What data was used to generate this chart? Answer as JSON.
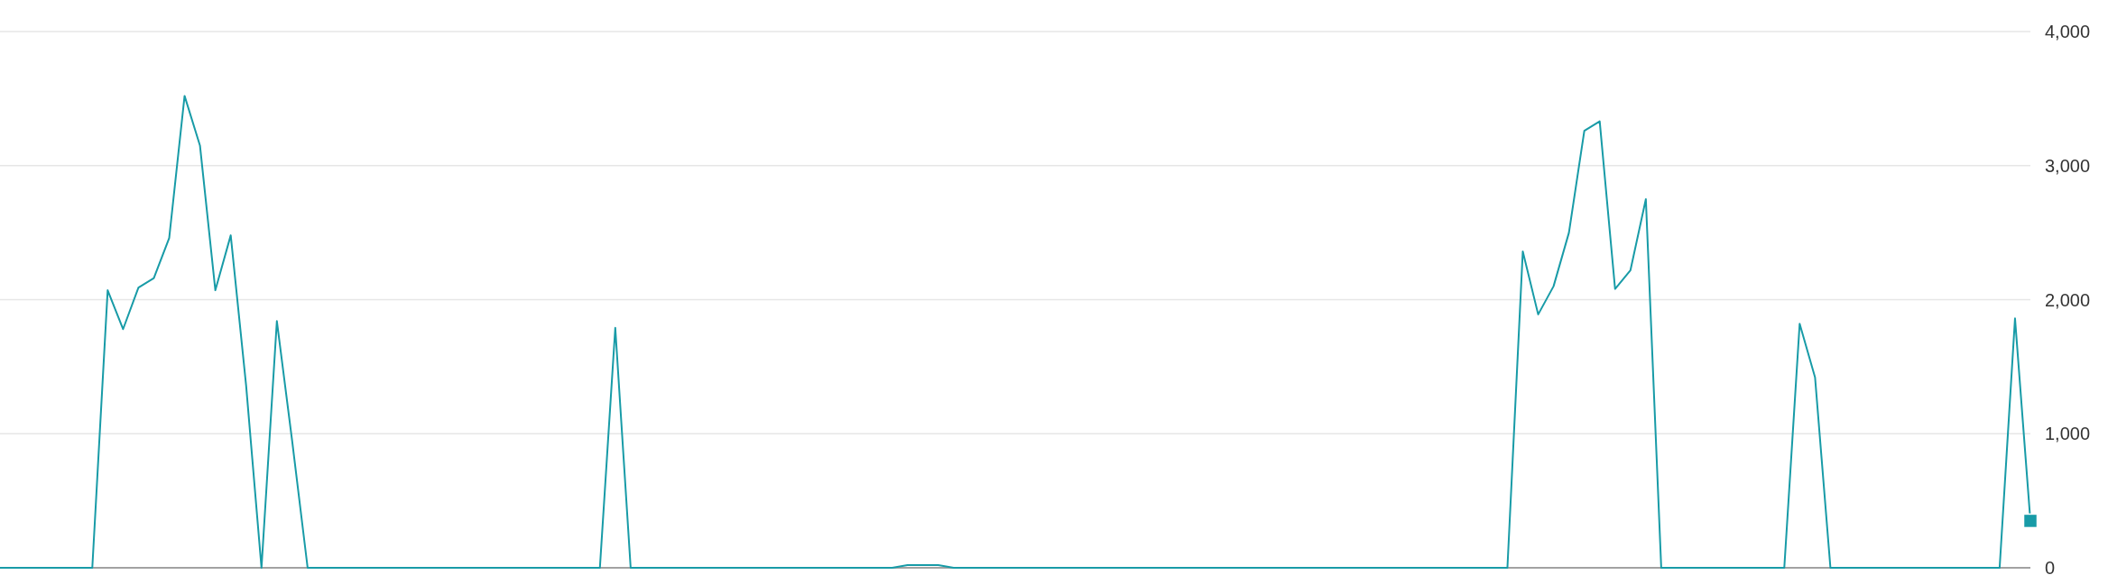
{
  "chart_data": {
    "type": "line",
    "categories": [
      null,
      null,
      null,
      null,
      null,
      null,
      null,
      null,
      null,
      null,
      null,
      null,
      null,
      null,
      null,
      null,
      null,
      null,
      null,
      null,
      null,
      null,
      null,
      null,
      null,
      null,
      null,
      null,
      null,
      null,
      null,
      null,
      null,
      null,
      null,
      null,
      null,
      null,
      null,
      null,
      null,
      null,
      null,
      null,
      null,
      null,
      null,
      null,
      null,
      null,
      null,
      null,
      null,
      null,
      null,
      null,
      null,
      null,
      null,
      null,
      null,
      null,
      null,
      null,
      null,
      null,
      null,
      null,
      null,
      null,
      null,
      null,
      null,
      null,
      null,
      null,
      null,
      null,
      null,
      null,
      null,
      null,
      null,
      null,
      null,
      null,
      null,
      null,
      null,
      null,
      null,
      null,
      null,
      null,
      null,
      null,
      null,
      null,
      null,
      null,
      null,
      null,
      null,
      null,
      null,
      null,
      null,
      null,
      null,
      null,
      null,
      null,
      null,
      null,
      null,
      null,
      null,
      null,
      null,
      null,
      null,
      null,
      null,
      null,
      null,
      null,
      null,
      null,
      null,
      null,
      null,
      null,
      null
    ],
    "series": [
      {
        "color": "#189ba7",
        "values": [
          0,
          0,
          0,
          0,
          0,
          0,
          0,
          2070,
          1780,
          2090,
          2160,
          2460,
          3520,
          3150,
          2070,
          2480,
          1360,
          0,
          1840,
          940,
          0,
          0,
          0,
          0,
          0,
          0,
          0,
          0,
          0,
          0,
          0,
          0,
          0,
          0,
          0,
          0,
          0,
          0,
          0,
          0,
          1790,
          0,
          0,
          0,
          0,
          0,
          0,
          0,
          0,
          0,
          0,
          0,
          0,
          0,
          0,
          0,
          0,
          0,
          0,
          20,
          20,
          20,
          0,
          0,
          0,
          0,
          0,
          0,
          0,
          0,
          0,
          0,
          0,
          0,
          0,
          0,
          0,
          0,
          0,
          0,
          0,
          0,
          0,
          0,
          0,
          0,
          0,
          0,
          0,
          0,
          0,
          0,
          0,
          0,
          0,
          0,
          0,
          0,
          0,
          2360,
          1890,
          2100,
          2500,
          3260,
          3330,
          2080,
          2220,
          2750,
          0,
          0,
          0,
          0,
          0,
          0,
          0,
          0,
          0,
          1820,
          1420,
          0,
          0,
          0,
          0,
          0,
          0,
          0,
          0,
          0,
          0,
          0,
          0,
          1860,
          350
        ]
      },
      {
        "type": "scatter",
        "color": "#189ba7",
        "marker": "square",
        "values": [
          null,
          null,
          null,
          null,
          null,
          null,
          null,
          null,
          null,
          null,
          null,
          null,
          null,
          null,
          null,
          null,
          null,
          null,
          null,
          null,
          null,
          null,
          null,
          null,
          null,
          null,
          null,
          null,
          null,
          null,
          null,
          null,
          null,
          null,
          null,
          null,
          null,
          null,
          null,
          null,
          null,
          null,
          null,
          null,
          null,
          null,
          null,
          null,
          null,
          null,
          null,
          null,
          null,
          null,
          null,
          null,
          null,
          null,
          null,
          null,
          null,
          null,
          null,
          null,
          null,
          null,
          null,
          null,
          null,
          null,
          null,
          null,
          null,
          null,
          null,
          null,
          null,
          null,
          null,
          null,
          null,
          null,
          null,
          null,
          null,
          null,
          null,
          null,
          null,
          null,
          null,
          null,
          null,
          null,
          null,
          null,
          null,
          null,
          null,
          null,
          null,
          null,
          null,
          null,
          null,
          null,
          null,
          null,
          null,
          null,
          null,
          null,
          null,
          null,
          null,
          null,
          null,
          null,
          null,
          null,
          null,
          null,
          null,
          null,
          null,
          null,
          null,
          null,
          null,
          null,
          null,
          null,
          350
        ]
      }
    ],
    "ylim": [
      0,
      4000
    ],
    "yticks": [
      0,
      {
        "value": 1000,
        "label": "1,000"
      },
      {
        "value": 2000,
        "label": "2,000"
      },
      {
        "value": 3000,
        "label": "3,000"
      },
      {
        "value": 4000,
        "label": "4,000"
      }
    ],
    "grid": "y",
    "tick_labels": "y",
    "marker": "none",
    "line_style": "solid"
  }
}
